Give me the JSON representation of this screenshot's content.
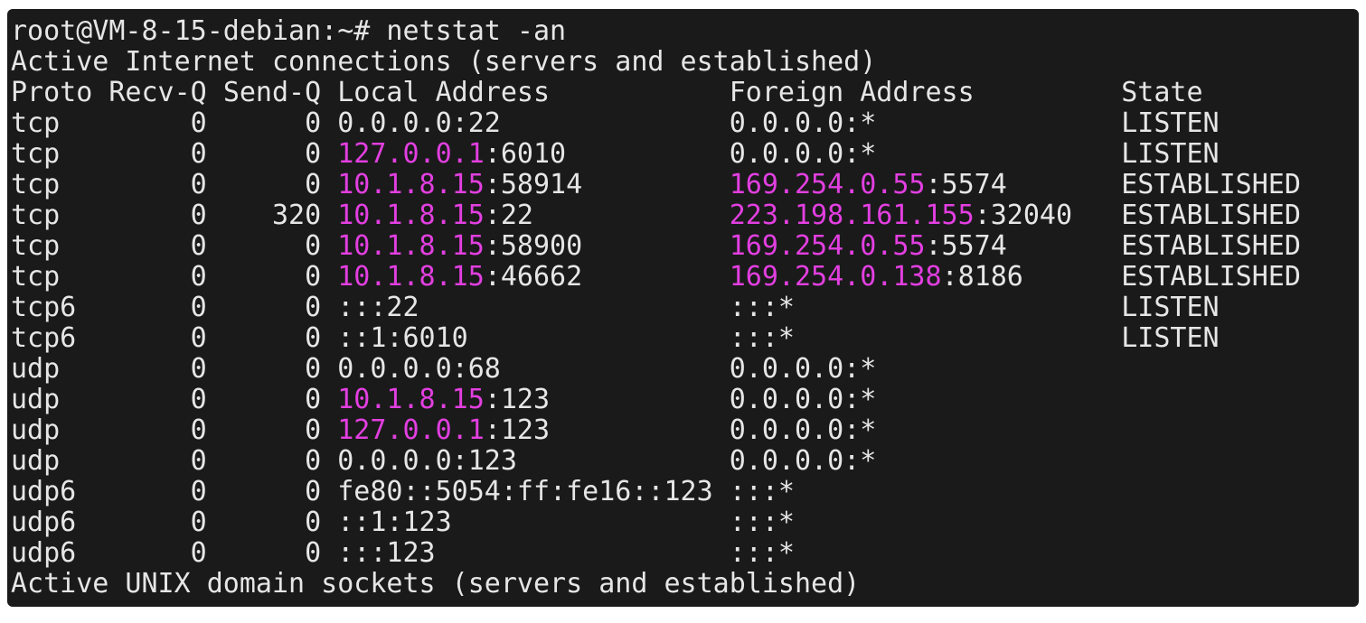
{
  "terminal": {
    "prompt": "root@VM-8-15-debian:~# ",
    "command": "netstat -an",
    "section_internet": "Active Internet connections (servers and established)",
    "headers": {
      "proto": "Proto",
      "recvq": "Recv-Q",
      "sendq": "Send-Q",
      "local": "Local Address",
      "foreign": "Foreign Address",
      "state": "State"
    },
    "rows": [
      {
        "proto": "tcp",
        "recvq": "0",
        "sendq": "0",
        "local_ip": "0.0.0.0",
        "local_port": "22",
        "local_hl": false,
        "foreign_ip": "0.0.0.0",
        "foreign_port": "*",
        "foreign_hl": false,
        "state": "LISTEN"
      },
      {
        "proto": "tcp",
        "recvq": "0",
        "sendq": "0",
        "local_ip": "127.0.0.1",
        "local_port": "6010",
        "local_hl": true,
        "foreign_ip": "0.0.0.0",
        "foreign_port": "*",
        "foreign_hl": false,
        "state": "LISTEN"
      },
      {
        "proto": "tcp",
        "recvq": "0",
        "sendq": "0",
        "local_ip": "10.1.8.15",
        "local_port": "58914",
        "local_hl": true,
        "foreign_ip": "169.254.0.55",
        "foreign_port": "5574",
        "foreign_hl": true,
        "state": "ESTABLISHED"
      },
      {
        "proto": "tcp",
        "recvq": "0",
        "sendq": "320",
        "local_ip": "10.1.8.15",
        "local_port": "22",
        "local_hl": true,
        "foreign_ip": "223.198.161.155",
        "foreign_port": "32040",
        "foreign_hl": true,
        "state": "ESTABLISHED"
      },
      {
        "proto": "tcp",
        "recvq": "0",
        "sendq": "0",
        "local_ip": "10.1.8.15",
        "local_port": "58900",
        "local_hl": true,
        "foreign_ip": "169.254.0.55",
        "foreign_port": "5574",
        "foreign_hl": true,
        "state": "ESTABLISHED"
      },
      {
        "proto": "tcp",
        "recvq": "0",
        "sendq": "0",
        "local_ip": "10.1.8.15",
        "local_port": "46662",
        "local_hl": true,
        "foreign_ip": "169.254.0.138",
        "foreign_port": "8186",
        "foreign_hl": true,
        "state": "ESTABLISHED"
      },
      {
        "proto": "tcp6",
        "recvq": "0",
        "sendq": "0",
        "local_ip": "::",
        "local_port": "22",
        "local_hl": false,
        "foreign_ip": "::",
        "foreign_port": "*",
        "foreign_hl": false,
        "state": "LISTEN"
      },
      {
        "proto": "tcp6",
        "recvq": "0",
        "sendq": "0",
        "local_ip": "::1",
        "local_port": "6010",
        "local_hl": false,
        "foreign_ip": "::",
        "foreign_port": "*",
        "foreign_hl": false,
        "state": "LISTEN"
      },
      {
        "proto": "udp",
        "recvq": "0",
        "sendq": "0",
        "local_ip": "0.0.0.0",
        "local_port": "68",
        "local_hl": false,
        "foreign_ip": "0.0.0.0",
        "foreign_port": "*",
        "foreign_hl": false,
        "state": ""
      },
      {
        "proto": "udp",
        "recvq": "0",
        "sendq": "0",
        "local_ip": "10.1.8.15",
        "local_port": "123",
        "local_hl": true,
        "foreign_ip": "0.0.0.0",
        "foreign_port": "*",
        "foreign_hl": false,
        "state": ""
      },
      {
        "proto": "udp",
        "recvq": "0",
        "sendq": "0",
        "local_ip": "127.0.0.1",
        "local_port": "123",
        "local_hl": true,
        "foreign_ip": "0.0.0.0",
        "foreign_port": "*",
        "foreign_hl": false,
        "state": ""
      },
      {
        "proto": "udp",
        "recvq": "0",
        "sendq": "0",
        "local_ip": "0.0.0.0",
        "local_port": "123",
        "local_hl": false,
        "foreign_ip": "0.0.0.0",
        "foreign_port": "*",
        "foreign_hl": false,
        "state": ""
      },
      {
        "proto": "udp6",
        "recvq": "0",
        "sendq": "0",
        "local_ip": "fe80::5054:ff:fe16:",
        "local_port": "123",
        "local_hl": false,
        "foreign_ip": "::",
        "foreign_port": "*",
        "foreign_hl": false,
        "state": ""
      },
      {
        "proto": "udp6",
        "recvq": "0",
        "sendq": "0",
        "local_ip": "::1",
        "local_port": "123",
        "local_hl": false,
        "foreign_ip": "::",
        "foreign_port": "*",
        "foreign_hl": false,
        "state": ""
      },
      {
        "proto": "udp6",
        "recvq": "0",
        "sendq": "0",
        "local_ip": "::",
        "local_port": "123",
        "local_hl": false,
        "foreign_ip": "::",
        "foreign_port": "*",
        "foreign_hl": false,
        "state": ""
      }
    ],
    "section_unix": "Active UNIX domain sockets (servers and established)",
    "colors": {
      "background": "#1a1a1a",
      "text": "#e6e6e6",
      "highlight": "#e23fe0"
    }
  }
}
